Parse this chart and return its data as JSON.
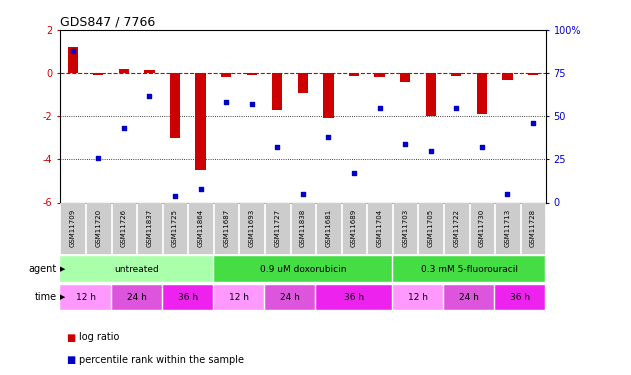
{
  "title": "GDS847 / 7766",
  "samples": [
    "GSM11709",
    "GSM11720",
    "GSM11726",
    "GSM11837",
    "GSM11725",
    "GSM11864",
    "GSM11687",
    "GSM11693",
    "GSM11727",
    "GSM11838",
    "GSM11681",
    "GSM11689",
    "GSM11704",
    "GSM11703",
    "GSM11705",
    "GSM11722",
    "GSM11730",
    "GSM11713",
    "GSM11728"
  ],
  "log_ratio": [
    1.2,
    -0.1,
    0.2,
    0.15,
    -3.0,
    -4.5,
    -0.2,
    -0.1,
    -1.7,
    -0.9,
    -2.1,
    -0.15,
    -0.2,
    -0.4,
    -2.0,
    -0.15,
    -1.9,
    -0.3,
    -0.1
  ],
  "percentile": [
    88,
    26,
    43,
    62,
    4,
    8,
    58,
    57,
    32,
    5,
    38,
    17,
    55,
    34,
    30,
    55,
    32,
    5,
    46
  ],
  "agents": [
    {
      "label": "untreated",
      "start": 0,
      "end": 6,
      "color": "#aaffaa"
    },
    {
      "label": "0.9 uM doxorubicin",
      "start": 6,
      "end": 13,
      "color": "#44dd44"
    },
    {
      "label": "0.3 mM 5-fluorouracil",
      "start": 13,
      "end": 19,
      "color": "#44dd44"
    }
  ],
  "times": [
    {
      "label": "12 h",
      "start": 0,
      "end": 2,
      "color": "#ff99ff"
    },
    {
      "label": "24 h",
      "start": 2,
      "end": 4,
      "color": "#dd55dd"
    },
    {
      "label": "36 h",
      "start": 4,
      "end": 6,
      "color": "#ee22ee"
    },
    {
      "label": "12 h",
      "start": 6,
      "end": 8,
      "color": "#ff99ff"
    },
    {
      "label": "24 h",
      "start": 8,
      "end": 10,
      "color": "#dd55dd"
    },
    {
      "label": "36 h",
      "start": 10,
      "end": 13,
      "color": "#ee22ee"
    },
    {
      "label": "12 h",
      "start": 13,
      "end": 15,
      "color": "#ff99ff"
    },
    {
      "label": "24 h",
      "start": 15,
      "end": 17,
      "color": "#dd55dd"
    },
    {
      "label": "36 h",
      "start": 17,
      "end": 19,
      "color": "#ee22ee"
    }
  ],
  "ylim_left": [
    -6,
    2
  ],
  "ylim_right": [
    0,
    100
  ],
  "yticks_left": [
    -6,
    -4,
    -2,
    0,
    2
  ],
  "yticks_right": [
    0,
    25,
    50,
    75,
    100
  ],
  "bar_color": "#cc0000",
  "dot_color": "#0000cc",
  "bg_color": "#ffffff",
  "sample_bg": "#cccccc",
  "legend_log_ratio": "log ratio",
  "legend_percentile": "percentile rank within the sample"
}
